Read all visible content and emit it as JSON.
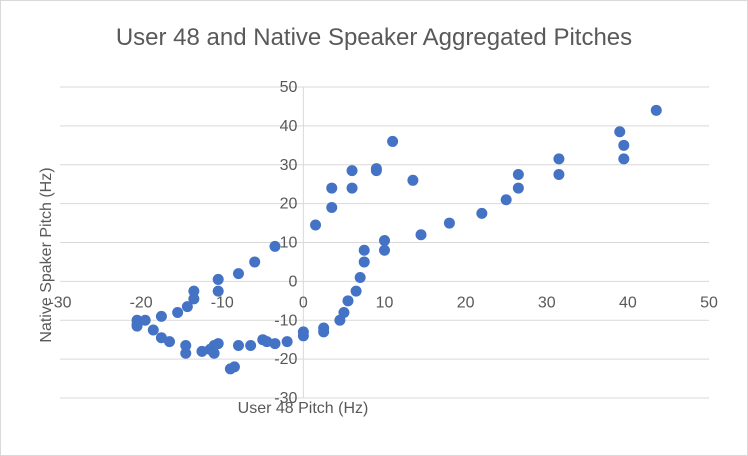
{
  "chart_data": {
    "type": "scatter",
    "title": "User 48 and Native Speaker Aggregated Pitches",
    "xlabel": "User 48 Pitch (Hz)",
    "ylabel": "Native Spaker Pitch (Hz)",
    "xlim": [
      -30,
      50
    ],
    "ylim": [
      -30,
      50
    ],
    "x_ticks": [
      -30,
      -20,
      -10,
      0,
      10,
      20,
      30,
      40,
      50
    ],
    "y_ticks": [
      -30,
      -20,
      -10,
      0,
      10,
      20,
      30,
      40,
      50
    ],
    "x_tick_labels": [
      "-30",
      "-20",
      "-10",
      "0",
      "10",
      "20",
      "30",
      "40",
      "50"
    ],
    "y_tick_labels": [
      "-30",
      "-20",
      "-10",
      "0",
      "10",
      "20",
      "30",
      "40",
      "50"
    ],
    "grid": "horizontal",
    "legend": "none",
    "marker_color": "#4472c4",
    "series": [
      {
        "points": [
          [
            -20.5,
            -10.0
          ],
          [
            -20.5,
            -11.5
          ],
          [
            -20.5,
            -11.0
          ],
          [
            -19.5,
            -10.0
          ],
          [
            -18.5,
            -12.5
          ],
          [
            -17.5,
            -14.5
          ],
          [
            -17.5,
            -9.0
          ],
          [
            -16.5,
            -15.5
          ],
          [
            -15.5,
            -8.0
          ],
          [
            -14.5,
            -16.5
          ],
          [
            -14.5,
            -18.5
          ],
          [
            -14.3,
            -6.5
          ],
          [
            -13.5,
            -4.5
          ],
          [
            -13.5,
            -2.5
          ],
          [
            -12.5,
            -18.0
          ],
          [
            -11.5,
            -17.5
          ],
          [
            -11.0,
            -16.5
          ],
          [
            -11.0,
            -18.5
          ],
          [
            -10.5,
            -16.0
          ],
          [
            -10.5,
            -2.5
          ],
          [
            -10.5,
            0.5
          ],
          [
            -9.0,
            -22.5
          ],
          [
            -8.5,
            -22.0
          ],
          [
            -8.0,
            -16.5
          ],
          [
            -8.0,
            2.0
          ],
          [
            -6.5,
            -16.5
          ],
          [
            -6.0,
            5.0
          ],
          [
            -5.0,
            -15.0
          ],
          [
            -4.5,
            -15.5
          ],
          [
            -3.5,
            -16.0
          ],
          [
            -3.5,
            9.0
          ],
          [
            -2.0,
            -15.5
          ],
          [
            0.0,
            -13.0
          ],
          [
            0.0,
            -14.0
          ],
          [
            1.5,
            14.5
          ],
          [
            2.5,
            -12.0
          ],
          [
            2.5,
            -13.0
          ],
          [
            3.5,
            19.0
          ],
          [
            3.5,
            24.0
          ],
          [
            4.5,
            -10.0
          ],
          [
            5.0,
            -8.0
          ],
          [
            5.5,
            -5.0
          ],
          [
            6.0,
            24.0
          ],
          [
            6.0,
            28.5
          ],
          [
            6.5,
            -2.5
          ],
          [
            7.0,
            1.0
          ],
          [
            7.5,
            5.0
          ],
          [
            7.5,
            8.0
          ],
          [
            9.0,
            28.5
          ],
          [
            9.0,
            29.0
          ],
          [
            10.0,
            8.0
          ],
          [
            10.0,
            10.5
          ],
          [
            11.0,
            36.0
          ],
          [
            13.5,
            26.0
          ],
          [
            14.5,
            12.0
          ],
          [
            18.0,
            15.0
          ],
          [
            22.0,
            17.5
          ],
          [
            25.0,
            21.0
          ],
          [
            26.5,
            24.0
          ],
          [
            26.5,
            27.5
          ],
          [
            31.5,
            27.5
          ],
          [
            31.5,
            31.5
          ],
          [
            39.0,
            38.5
          ],
          [
            39.5,
            35.0
          ],
          [
            39.5,
            31.5
          ],
          [
            43.5,
            44.0
          ]
        ]
      }
    ]
  }
}
